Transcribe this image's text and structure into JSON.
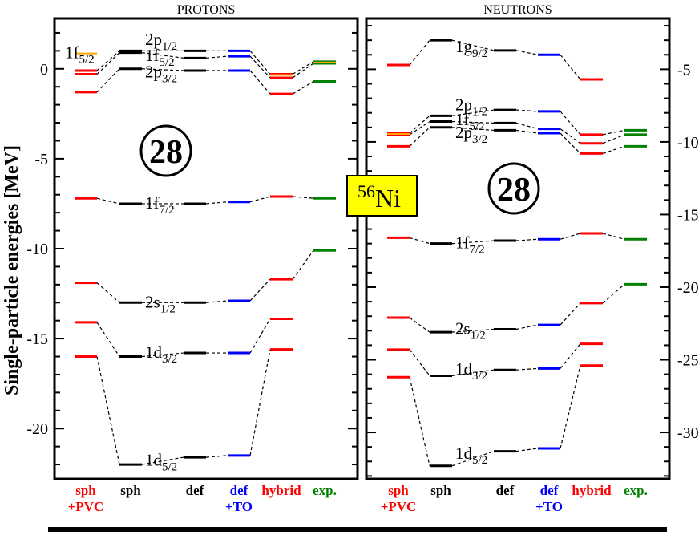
{
  "chart_data": {
    "type": "level-scheme",
    "ylabel": "Single-particle energies [MeV]",
    "center_label": {
      "mass": "56",
      "symbol": "Ni"
    },
    "columns": [
      {
        "line1": "sph",
        "line2": "+PVC",
        "color": "#ff0000"
      },
      {
        "line1": "sph",
        "line2": "",
        "color": "#000000"
      },
      {
        "line1": "def",
        "line2": "",
        "color": "#000000"
      },
      {
        "line1": "def",
        "line2": "+TO",
        "color": "#0000ff"
      },
      {
        "line1": "hybrid",
        "line2": "",
        "color": "#ff0000"
      },
      {
        "line1": "exp.",
        "line2": "",
        "color": "#008000"
      }
    ],
    "panels": [
      {
        "title": "PROTONS",
        "ylim": [
          -22.8,
          2.8
        ],
        "ticks": [
          0,
          -5,
          -10,
          -15,
          -20
        ],
        "tick_labels": [
          "0",
          "-5",
          "-10",
          "-15",
          "-20"
        ],
        "axis_side": "left",
        "magic": "28",
        "orbitals": [
          {
            "label": "1d",
            "sub": "5/2",
            "levels": [
              -16.0,
              -22.0,
              -21.6,
              -21.5,
              -15.6,
              null
            ]
          },
          {
            "label": "1d",
            "sub": "3/2",
            "levels": [
              -14.1,
              -16.0,
              -15.8,
              -15.8,
              -13.9,
              null
            ]
          },
          {
            "label": "2s",
            "sub": "1/2",
            "levels": [
              -11.9,
              -13.0,
              -13.0,
              -12.9,
              -11.7,
              -10.1
            ]
          },
          {
            "label": "1f",
            "sub": "7/2",
            "levels": [
              -7.2,
              -7.5,
              -7.5,
              -7.4,
              -7.1,
              -7.2
            ]
          },
          {
            "label": "2p",
            "sub": "3/2",
            "levels": [
              -1.3,
              0.0,
              -0.1,
              -0.1,
              -1.4,
              -0.7
            ]
          },
          {
            "label": "1f",
            "sub": "5/2",
            "levels": [
              -0.3,
              0.9,
              0.6,
              0.7,
              -0.5,
              0.3
            ]
          },
          {
            "label": "2p",
            "sub": "1/2",
            "levels": [
              -0.1,
              1.0,
              1.0,
              1.0,
              -0.3,
              0.4
            ]
          }
        ],
        "highlighted": [
          {
            "col": 1,
            "value": 0.9
          },
          {
            "col": 5,
            "value": -0.3
          },
          {
            "col": 6,
            "value": 0.4
          }
        ],
        "labels": [
          {
            "label": "1f",
            "sub": "5/2",
            "col": 0,
            "value": 0.85
          },
          {
            "label": "2p",
            "sub": "1/2",
            "col": 2,
            "value": 1.6
          },
          {
            "label": "1f",
            "sub": "5/2",
            "col": 2,
            "value": 0.7
          },
          {
            "label": "2p",
            "sub": "3/2",
            "col": 2,
            "value": -0.2
          },
          {
            "label": "1f",
            "sub": "7/2",
            "col": 2,
            "value": -7.5
          },
          {
            "label": "2s",
            "sub": "1/2",
            "col": 2,
            "value": -13.0
          },
          {
            "label": "1d",
            "sub": "3/2",
            "col": 2,
            "value": -15.8
          },
          {
            "label": "1d",
            "sub": "5/2",
            "col": 2,
            "value": -21.8
          }
        ]
      },
      {
        "title": "NEUTRONS",
        "ylim": [
          -33.2,
          -1.5
        ],
        "ticks": [
          -5,
          -10,
          -15,
          -20,
          -25,
          -30
        ],
        "tick_labels": [
          "-5",
          "-10",
          "-15",
          "-20",
          "-25",
          "-30"
        ],
        "axis_side": "right",
        "magic": "28",
        "orbitals": [
          {
            "label": "1d",
            "sub": "5/2",
            "levels": [
              -26.2,
              -32.3,
              -31.3,
              -31.1,
              -25.4,
              null
            ]
          },
          {
            "label": "1d",
            "sub": "3/2",
            "levels": [
              -24.3,
              -26.1,
              -25.7,
              -25.6,
              -23.9,
              null
            ]
          },
          {
            "label": "2s",
            "sub": "1/2",
            "levels": [
              -22.1,
              -23.1,
              -22.9,
              -22.6,
              -21.1,
              -19.8
            ]
          },
          {
            "label": "1f",
            "sub": "7/2",
            "levels": [
              -16.6,
              -17.0,
              -16.8,
              -16.7,
              -16.3,
              -16.7
            ]
          },
          {
            "label": "2p",
            "sub": "3/2",
            "levels": [
              -10.3,
              -9.0,
              -9.2,
              -9.4,
              -10.8,
              -10.3
            ]
          },
          {
            "label": "1f",
            "sub": "5/2",
            "levels": [
              -9.5,
              -8.6,
              -8.7,
              -9.1,
              -10.1,
              -9.5
            ]
          },
          {
            "label": "2p",
            "sub": "1/2",
            "levels": [
              -9.4,
              -8.2,
              -7.8,
              -7.9,
              -9.5,
              -9.2
            ]
          },
          {
            "label": "1g",
            "sub": "9/2",
            "levels": [
              -4.7,
              -3.0,
              -3.7,
              -4.0,
              -5.7,
              null
            ]
          }
        ],
        "highlighted": [
          {
            "col": 1,
            "value": -9.4
          }
        ],
        "labels": [
          {
            "label": "1g",
            "sub": "9/2",
            "col": 2,
            "value": -3.5
          },
          {
            "label": "2p",
            "sub": "1/2",
            "col": 2,
            "value": -7.5
          },
          {
            "label": "1f",
            "sub": "5/2",
            "col": 2,
            "value": -8.5
          },
          {
            "label": "2p",
            "sub": "3/2",
            "col": 2,
            "value": -9.4
          },
          {
            "label": "1f",
            "sub": "7/2",
            "col": 2,
            "value": -17.0
          },
          {
            "label": "2s",
            "sub": "1/2",
            "col": 2,
            "value": -22.9
          },
          {
            "label": "1d",
            "sub": "3/2",
            "col": 2,
            "value": -25.7
          },
          {
            "label": "1d",
            "sub": "5/2",
            "col": 2,
            "value": -31.5
          }
        ]
      }
    ],
    "highlight_color": "#ffa500"
  }
}
